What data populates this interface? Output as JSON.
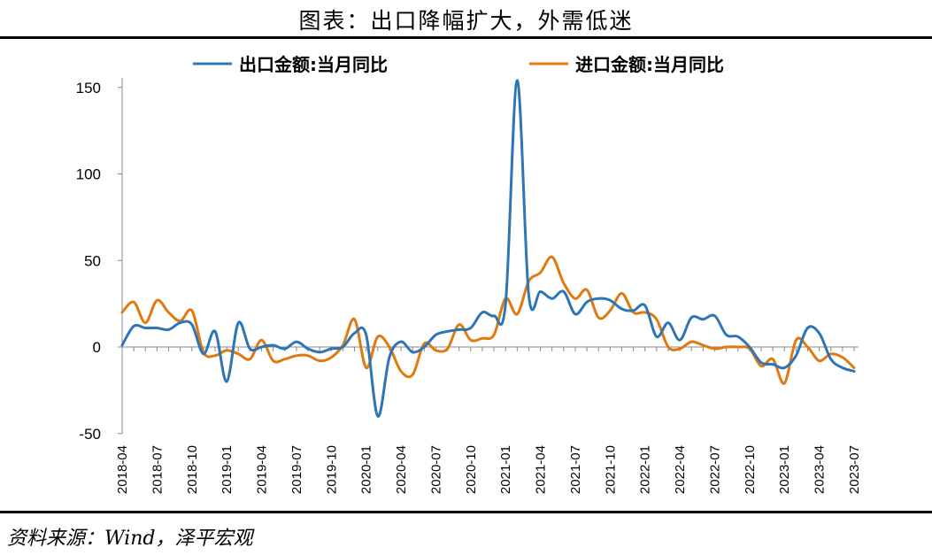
{
  "title": "图表：出口降幅扩大，外需低迷",
  "source": "资料来源：Wind，泽平宏观",
  "colors": {
    "export": "#2E75B6",
    "import": "#E07A10"
  },
  "chart_data": {
    "type": "line",
    "legend_position": "top",
    "ylim": [
      -50,
      160
    ],
    "yticks": [
      "150",
      "100",
      "50",
      "0",
      "-50"
    ],
    "xticks": [
      "2018-04",
      "2018-07",
      "2018-10",
      "2019-01",
      "2019-04",
      "2019-07",
      "2019-10",
      "2020-01",
      "2020-04",
      "2020-07",
      "2020-10",
      "2021-01",
      "2021-04",
      "2021-07",
      "2021-10",
      "2022-01",
      "2022-04",
      "2022-07",
      "2022-10",
      "2023-01",
      "2023-04",
      "2023-07"
    ],
    "x": [
      "2018-04",
      "2018-05",
      "2018-06",
      "2018-07",
      "2018-08",
      "2018-09",
      "2018-10",
      "2018-11",
      "2018-12",
      "2019-01",
      "2019-02",
      "2019-03",
      "2019-04",
      "2019-05",
      "2019-06",
      "2019-07",
      "2019-08",
      "2019-09",
      "2019-10",
      "2019-11",
      "2019-12",
      "2020-01",
      "2020-02",
      "2020-03",
      "2020-04",
      "2020-05",
      "2020-06",
      "2020-07",
      "2020-08",
      "2020-09",
      "2020-10",
      "2020-11",
      "2020-12",
      "2021-01",
      "2021-02",
      "2021-03",
      "2021-04",
      "2021-05",
      "2021-06",
      "2021-07",
      "2021-08",
      "2021-09",
      "2021-10",
      "2021-11",
      "2021-12",
      "2022-01",
      "2022-02",
      "2022-03",
      "2022-04",
      "2022-05",
      "2022-06",
      "2022-07",
      "2022-08",
      "2022-09",
      "2022-10",
      "2022-11",
      "2022-12",
      "2023-01",
      "2023-02",
      "2023-03",
      "2023-04",
      "2023-05",
      "2023-06",
      "2023-07"
    ],
    "series": [
      {
        "name": "出口金额:当月同比",
        "color": "#2E75B6",
        "values": [
          1,
          12,
          11,
          11,
          10,
          14,
          13,
          -4,
          9,
          -20,
          14,
          -1,
          0,
          1,
          -1,
          3,
          -1,
          -3,
          -1,
          0,
          8,
          7,
          -40,
          -6,
          3,
          -3,
          0,
          7,
          9,
          10,
          11,
          20,
          18,
          25,
          154,
          30,
          32,
          28,
          32,
          19,
          26,
          28,
          27,
          22,
          21,
          24,
          6,
          14,
          4,
          17,
          16,
          18,
          7,
          6,
          0,
          -9,
          -10,
          -12,
          -5,
          11,
          8,
          -7,
          -12,
          -14
        ]
      },
      {
        "name": "进口金额:当月同比",
        "color": "#E07A10",
        "values": [
          20,
          26,
          14,
          27,
          20,
          15,
          21,
          -3,
          -5,
          -2,
          -4,
          -7,
          4,
          -8,
          -7,
          -5,
          -5,
          -8,
          -6,
          1,
          16,
          -12,
          6,
          0,
          -14,
          -16,
          2,
          -2,
          -1,
          13,
          4,
          5,
          7,
          28,
          19,
          38,
          43,
          52,
          37,
          28,
          33,
          17,
          21,
          31,
          20,
          20,
          16,
          0,
          -1,
          3,
          1,
          -1,
          0,
          0,
          -1,
          -11,
          -7,
          -21,
          4,
          0,
          -8,
          -4,
          -6,
          -12
        ]
      }
    ]
  }
}
